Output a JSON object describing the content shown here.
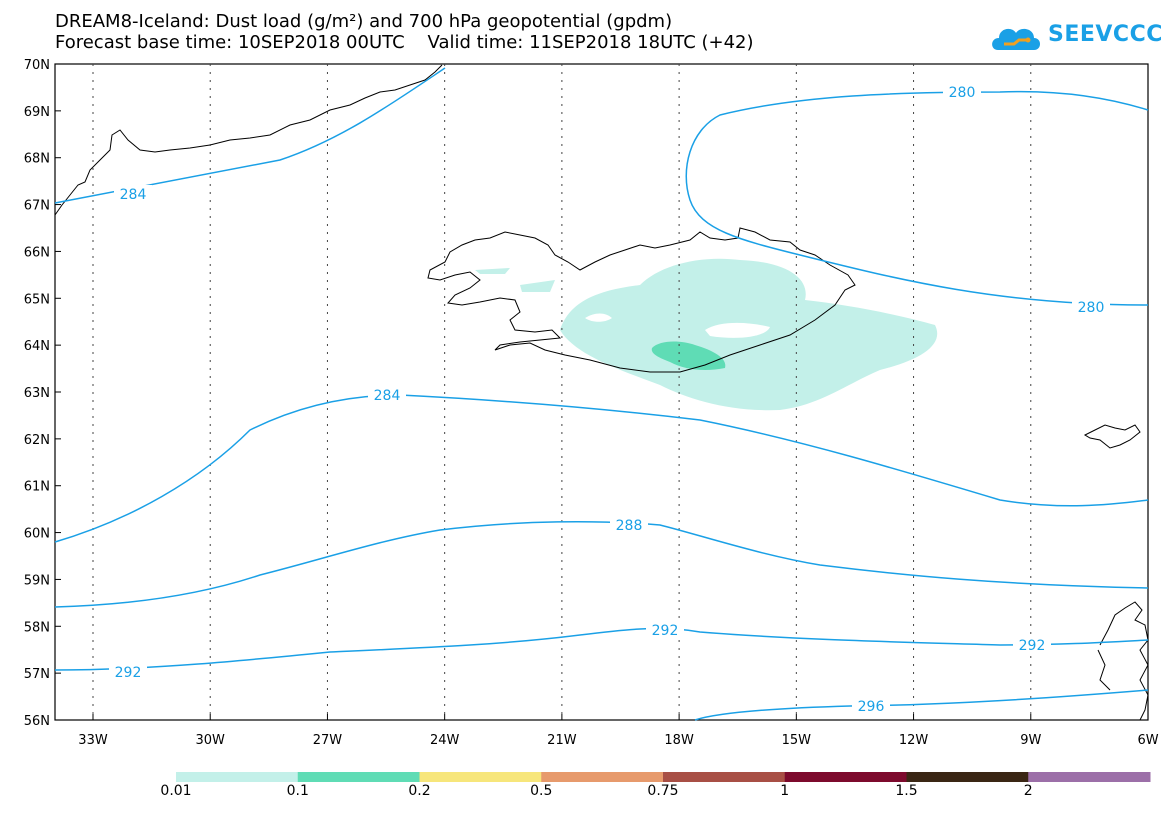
{
  "header": {
    "title_line1": "DREAM8-Iceland: Dust load (g/m²) and 700 hPa geopotential (gpdm)",
    "title_line2": "Forecast base time: 10SEP2018 00UTC    Valid time: 11SEP2018 18UTC (+42)"
  },
  "logo": {
    "text": "SEEVCCC",
    "icon": "cloud-logo-icon",
    "color": "#1aa0e6"
  },
  "map": {
    "lat_labels": [
      "70N",
      "69N",
      "68N",
      "67N",
      "66N",
      "65N",
      "64N",
      "63N",
      "62N",
      "61N",
      "60N",
      "59N",
      "58N",
      "57N",
      "56N"
    ],
    "lon_labels": [
      "33W",
      "30W",
      "27W",
      "24W",
      "21W",
      "18W",
      "15W",
      "12W",
      "9W",
      "6W"
    ],
    "contour_color": "#1aa0e6",
    "contour_labels": [
      "284",
      "280",
      "280",
      "284",
      "288",
      "292",
      "292",
      "296"
    ]
  },
  "colorbar": {
    "colors": [
      "#c3f0e9",
      "#5fdcb5",
      "#f7e67b",
      "#e79a6c",
      "#a84f45",
      "#7d0a2d",
      "#3a2614",
      "#9c6fa8"
    ],
    "labels": [
      "0.01",
      "0.1",
      "0.2",
      "0.5",
      "0.75",
      "1",
      "1.5",
      "2"
    ]
  }
}
